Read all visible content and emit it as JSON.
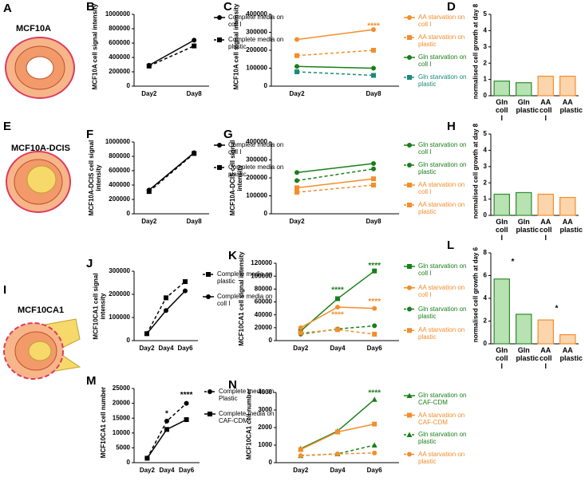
{
  "illustrations": [
    {
      "panel": "A",
      "label": "MCF10A"
    },
    {
      "panel": "E",
      "label": "MCF10A-DCIS"
    },
    {
      "panel": "I",
      "label": "MCF10CA1"
    }
  ],
  "chart_data": [
    {
      "panel": "B",
      "type": "line",
      "y_label": "MCF10A cell signal intensity",
      "categories": [
        "Day2",
        "Day8"
      ],
      "ylim": [
        0,
        1000000
      ],
      "yticks": [
        0,
        200000,
        400000,
        600000,
        800000,
        1000000
      ],
      "series": [
        {
          "name": "Complete media on coll I",
          "color": "#000000",
          "marker": "circle",
          "dash": false,
          "values": [
            290000,
            640000
          ]
        },
        {
          "name": "Complete media on plastic",
          "color": "#000000",
          "marker": "square",
          "dash": true,
          "values": [
            280000,
            560000
          ]
        }
      ]
    },
    {
      "panel": "C",
      "type": "line",
      "y_label": "MCF10A cell signal intensity",
      "categories": [
        "Day2",
        "Day8"
      ],
      "ylim": [
        0,
        400000
      ],
      "yticks": [
        0,
        100000,
        200000,
        300000,
        400000
      ],
      "series": [
        {
          "name": "AA starvation on coll I",
          "color": "#f28e2b",
          "marker": "circle",
          "dash": false,
          "values": [
            260000,
            315000
          ]
        },
        {
          "name": "AA starvation on plastic",
          "color": "#f28e2b",
          "marker": "square",
          "dash": true,
          "values": [
            170000,
            200000
          ]
        },
        {
          "name": "Gln starvation on coll I",
          "color": "#1a7f1a",
          "marker": "circle",
          "dash": false,
          "values": [
            110000,
            100000
          ]
        },
        {
          "name": "Gln starvation on plastic",
          "color": "#1b8a7a",
          "marker": "square",
          "dash": true,
          "values": [
            80000,
            60000
          ]
        }
      ],
      "annotations": [
        {
          "text": "****",
          "x": "Day8",
          "y": 335000,
          "color": "#f28e2b"
        }
      ]
    },
    {
      "panel": "D",
      "type": "bar",
      "y_label": "normalised cell growth at day 8",
      "categories": [
        "Gln coll I",
        "Gln plastic",
        "AA coll I",
        "AA plastic"
      ],
      "ylim": [
        0,
        5
      ],
      "yticks": [
        0,
        1,
        2,
        3,
        4,
        5
      ],
      "values": [
        0.9,
        0.8,
        1.2,
        1.2
      ],
      "colors": [
        "#b7e2b1",
        "#b7e2b1",
        "#fcd5ad",
        "#fcd5ad"
      ],
      "edge_colors": [
        "#2e8b2e",
        "#2e8b2e",
        "#f28e2b",
        "#f28e2b"
      ]
    },
    {
      "panel": "F",
      "type": "line",
      "y_label": "MCF10A-DCIS cell signal intensity",
      "categories": [
        "Day2",
        "Day8"
      ],
      "ylim": [
        0,
        1000000
      ],
      "yticks": [
        0,
        200000,
        400000,
        600000,
        800000,
        1000000
      ],
      "series": [
        {
          "name": "Complete media on coll I",
          "color": "#000000",
          "marker": "circle",
          "dash": false,
          "values": [
            330000,
            850000
          ]
        },
        {
          "name": "Complete media on plastic",
          "color": "#000000",
          "marker": "square",
          "dash": true,
          "values": [
            310000,
            840000
          ]
        }
      ]
    },
    {
      "panel": "G",
      "type": "line",
      "y_label": "MCF10A-DCIS cell signal intensity",
      "categories": [
        "Day2",
        "Day8"
      ],
      "ylim": [
        0,
        400000
      ],
      "yticks": [
        0,
        100000,
        200000,
        300000,
        400000
      ],
      "series": [
        {
          "name": "Gln starvation on coll I",
          "color": "#1a7f1a",
          "marker": "circle",
          "dash": false,
          "values": [
            230000,
            280000
          ]
        },
        {
          "name": "Gln starvation on plastic",
          "color": "#1a7f1a",
          "marker": "circle",
          "dash": true,
          "values": [
            185000,
            250000
          ]
        },
        {
          "name": "AA starvation on coll I",
          "color": "#f28e2b",
          "marker": "square",
          "dash": false,
          "values": [
            145000,
            195000
          ]
        },
        {
          "name": "AA starvation on plastic",
          "color": "#f28e2b",
          "marker": "square",
          "dash": true,
          "values": [
            120000,
            160000
          ]
        }
      ]
    },
    {
      "panel": "H",
      "type": "bar",
      "y_label": "normalised cell growth at day 8",
      "categories": [
        "Gln coll I",
        "Gln plastic",
        "AA coll I",
        "AA plastic"
      ],
      "ylim": [
        0,
        5
      ],
      "yticks": [
        0,
        1,
        2,
        3,
        4,
        5
      ],
      "values": [
        1.3,
        1.4,
        1.3,
        1.1
      ],
      "colors": [
        "#b7e2b1",
        "#b7e2b1",
        "#fcd5ad",
        "#fcd5ad"
      ],
      "edge_colors": [
        "#2e8b2e",
        "#2e8b2e",
        "#f28e2b",
        "#f28e2b"
      ]
    },
    {
      "panel": "J",
      "type": "line",
      "y_label": "MCF10CA1 cell signal intensity",
      "categories": [
        "Day2",
        "Day4",
        "Day6"
      ],
      "ylim": [
        0,
        300000
      ],
      "yticks": [
        0,
        100000,
        200000,
        300000
      ],
      "series": [
        {
          "name": "Complete media on plastic",
          "color": "#000000",
          "marker": "square",
          "dash": true,
          "values": [
            30000,
            185000,
            255000
          ]
        },
        {
          "name": "Complete media on coll I",
          "color": "#000000",
          "marker": "circle",
          "dash": false,
          "values": [
            30000,
            130000,
            215000
          ]
        }
      ]
    },
    {
      "panel": "K",
      "type": "line",
      "y_label": "MCF10CA1 cell signal intensity",
      "categories": [
        "Day2",
        "Day4",
        "Day6"
      ],
      "ylim": [
        0,
        120000
      ],
      "yticks": [
        0,
        20000,
        40000,
        60000,
        80000,
        100000,
        120000
      ],
      "series": [
        {
          "name": "Gln starvation on coll I",
          "color": "#1a7f1a",
          "marker": "square",
          "dash": false,
          "values": [
            15000,
            65000,
            108000
          ]
        },
        {
          "name": "AA starvation on coll I",
          "color": "#f28e2b",
          "marker": "circle",
          "dash": false,
          "values": [
            20000,
            52000,
            50000
          ]
        },
        {
          "name": "Gln starvation on plastic",
          "color": "#1a7f1a",
          "marker": "circle",
          "dash": true,
          "values": [
            10000,
            18000,
            23000
          ]
        },
        {
          "name": "AA starvation on plastic",
          "color": "#f28e2b",
          "marker": "square",
          "dash": true,
          "values": [
            12000,
            17000,
            10000
          ]
        }
      ],
      "annotations": [
        {
          "text": "****",
          "x": "Day4",
          "y": 78000,
          "color": "#1a7f1a"
        },
        {
          "text": "****",
          "x": "Day6",
          "y": 116000,
          "color": "#1a7f1a"
        },
        {
          "text": "****",
          "x": "Day4",
          "y": 40000,
          "color": "#f28e2b"
        },
        {
          "text": "****",
          "x": "Day6",
          "y": 60000,
          "color": "#f28e2b"
        }
      ]
    },
    {
      "panel": "L",
      "type": "bar",
      "y_label": "normalised cell growth at day 6",
      "categories": [
        "Gln coll I",
        "Gln plastic",
        "AA coll I",
        "AA plastic"
      ],
      "ylim": [
        0,
        8
      ],
      "yticks": [
        0,
        2,
        4,
        6,
        8
      ],
      "values": [
        5.7,
        2.6,
        2.1,
        0.8
      ],
      "colors": [
        "#b7e2b1",
        "#b7e2b1",
        "#fcd5ad",
        "#fcd5ad"
      ],
      "edge_colors": [
        "#2e8b2e",
        "#2e8b2e",
        "#f28e2b",
        "#f28e2b"
      ],
      "annotations": [
        {
          "text": "*",
          "x": [
            "Gln coll I",
            "Gln plastic"
          ],
          "y": 7.2,
          "color": "#000000"
        },
        {
          "text": "*",
          "x": [
            "AA coll I",
            "AA plastic"
          ],
          "y": 3.1,
          "color": "#000000"
        }
      ]
    },
    {
      "panel": "M",
      "type": "line",
      "y_label": "MCF10CA1 cell number",
      "categories": [
        "Day2",
        "Day4",
        "Day6"
      ],
      "ylim": [
        0,
        25000
      ],
      "yticks": [
        0,
        5000,
        10000,
        15000,
        20000,
        25000
      ],
      "series": [
        {
          "name": "Complete media on Plastic",
          "color": "#000000",
          "marker": "circle",
          "dash": true,
          "values": [
            1500,
            14000,
            20000
          ]
        },
        {
          "name": "Complete media on CAF-CDM",
          "color": "#000000",
          "marker": "square",
          "dash": false,
          "values": [
            1500,
            11200,
            14500
          ]
        }
      ],
      "annotations": [
        {
          "text": "*",
          "x": "Day4",
          "y": 16500,
          "color": "#000000"
        },
        {
          "text": "****",
          "x": "Day6",
          "y": 22800,
          "color": "#000000"
        }
      ]
    },
    {
      "panel": "N",
      "type": "line",
      "y_label": "MCF10CA1 cell number",
      "categories": [
        "Day2",
        "Day4",
        "Day6"
      ],
      "ylim": [
        0,
        4000
      ],
      "yticks": [
        0,
        1000,
        2000,
        3000,
        4000
      ],
      "series": [
        {
          "name": "Gln starvation on CAF-CDM",
          "color": "#1a7f1a",
          "marker": "triangle",
          "dash": false,
          "values": [
            800,
            1800,
            3600
          ]
        },
        {
          "name": "AA starvation on CAF-CDM",
          "color": "#f28e2b",
          "marker": "square",
          "dash": false,
          "values": [
            750,
            1750,
            2200
          ]
        },
        {
          "name": "Gln starvation on plastic",
          "color": "#1a7f1a",
          "marker": "triangle",
          "dash": true,
          "values": [
            400,
            500,
            1000
          ]
        },
        {
          "name": "AA starvation on plastic",
          "color": "#f28e2b",
          "marker": "circle",
          "dash": true,
          "values": [
            400,
            500,
            550
          ]
        }
      ],
      "annotations": [
        {
          "text": "****",
          "x": "Day6",
          "y": 3950,
          "color": "#1a7f1a"
        }
      ]
    }
  ]
}
